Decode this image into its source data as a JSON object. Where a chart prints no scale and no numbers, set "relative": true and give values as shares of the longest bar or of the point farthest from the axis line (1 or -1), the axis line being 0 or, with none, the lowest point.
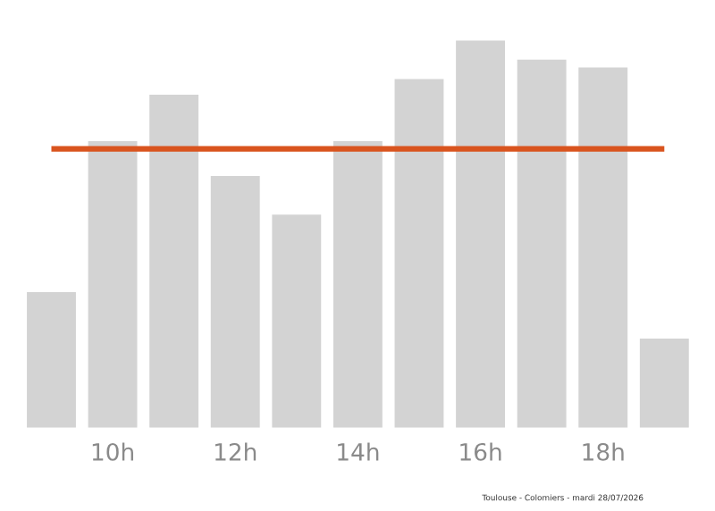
{
  "chart_data": {
    "type": "bar",
    "relative": true,
    "categories": [
      null,
      "10h",
      null,
      "12h",
      null,
      "14h",
      null,
      "16h",
      null,
      "18h",
      null
    ],
    "values": [
      0.35,
      0.74,
      0.86,
      0.65,
      0.55,
      0.74,
      0.9,
      1,
      0.95,
      0.93,
      0.23
    ],
    "color": "#d3d3d3",
    "ref_lines": [
      {
        "axis": "y",
        "value": 0.72,
        "color": "#d9541e"
      }
    ],
    "annotations": [
      "Toulouse - Colomiers - mardi 28/07/2026"
    ],
    "grid": false,
    "legend": false
  }
}
